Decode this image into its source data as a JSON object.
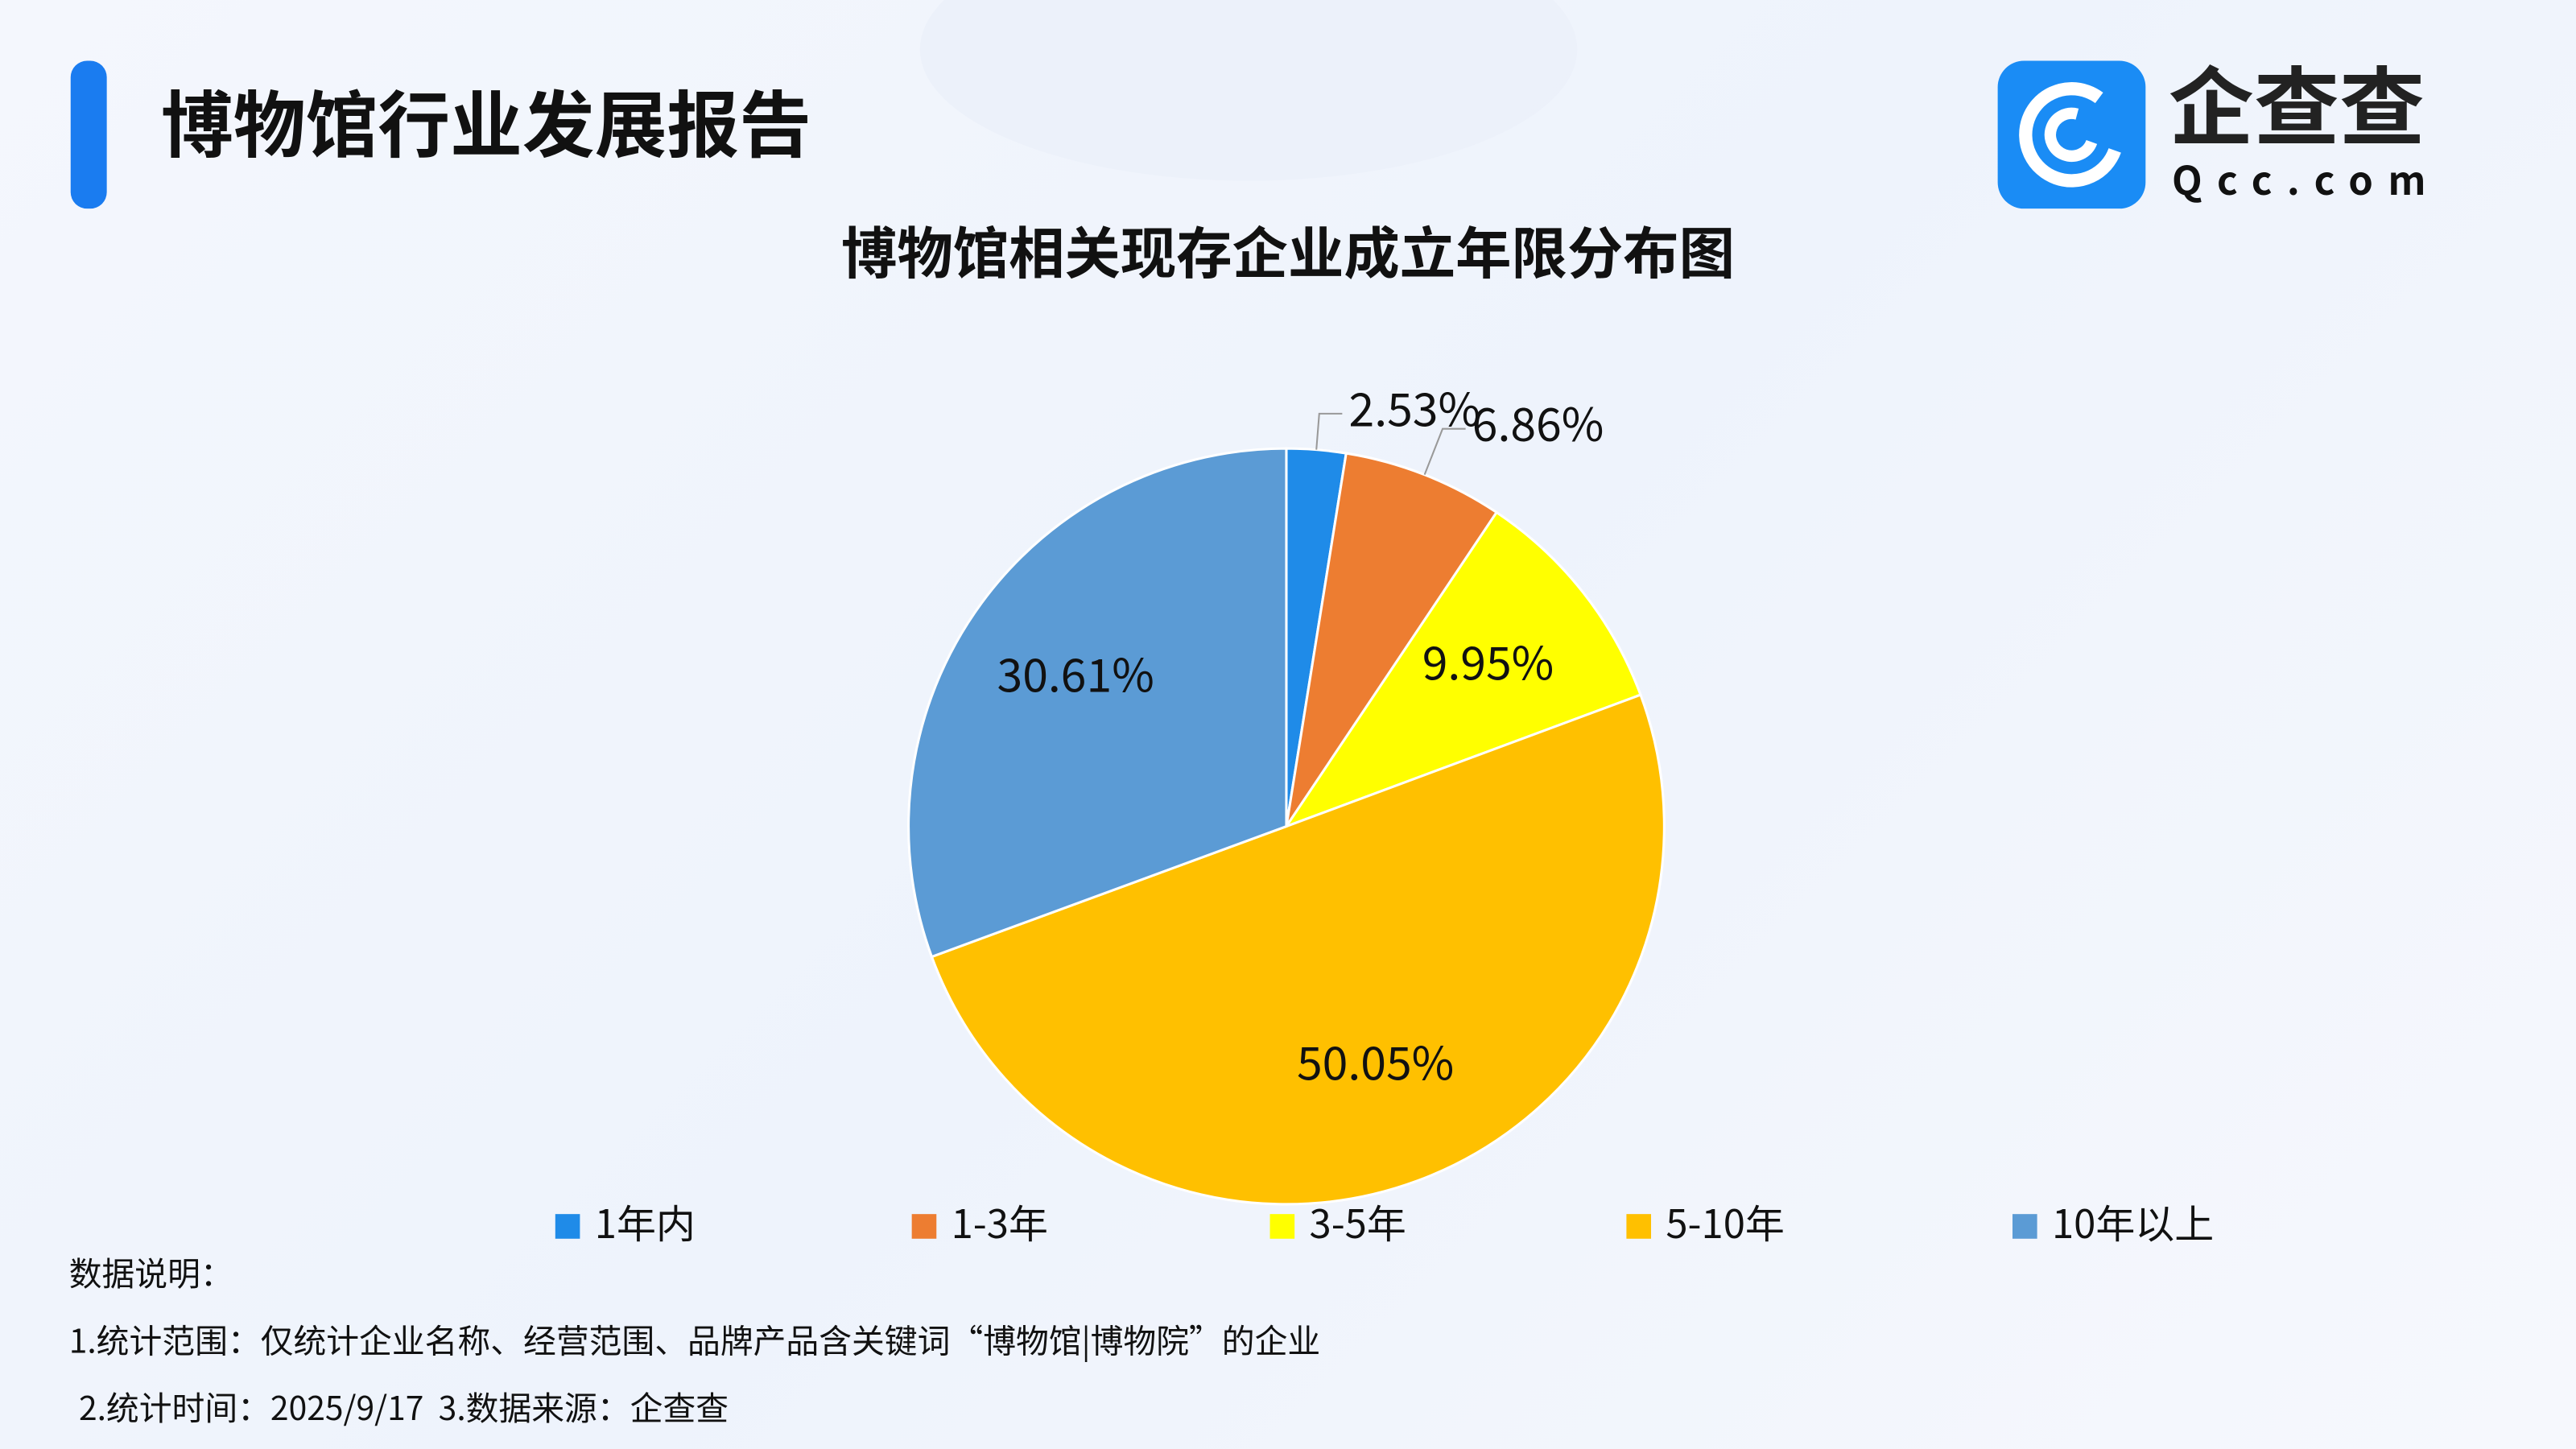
{
  "header": {
    "title": "博物馆行业发展报告",
    "logo_text": "企查查",
    "logo_domain": "Qcc.com"
  },
  "chart_data": {
    "type": "pie",
    "title": "博物馆相关现存企业成立年限分布图",
    "categories": [
      "1年内",
      "1-3年",
      "3-5年",
      "5-10年",
      "10年以上"
    ],
    "values": [
      2.53,
      6.86,
      9.95,
      50.05,
      30.61
    ],
    "value_labels": [
      "2.53%",
      "6.86%",
      "9.95%",
      "50.05%",
      "30.61%"
    ],
    "colors": [
      "#1f8be8",
      "#ed7d31",
      "#ffff00",
      "#ffc000",
      "#5b9bd5"
    ],
    "legend": "bottom"
  },
  "notes": {
    "heading": "数据说明：",
    "lines": [
      "1.统计范围：仅统计企业名称、经营范围、品牌产品含关键词“博物馆|博物院”的企业",
      "2.统计时间：2025/9/17  3.数据来源：企查查"
    ]
  }
}
